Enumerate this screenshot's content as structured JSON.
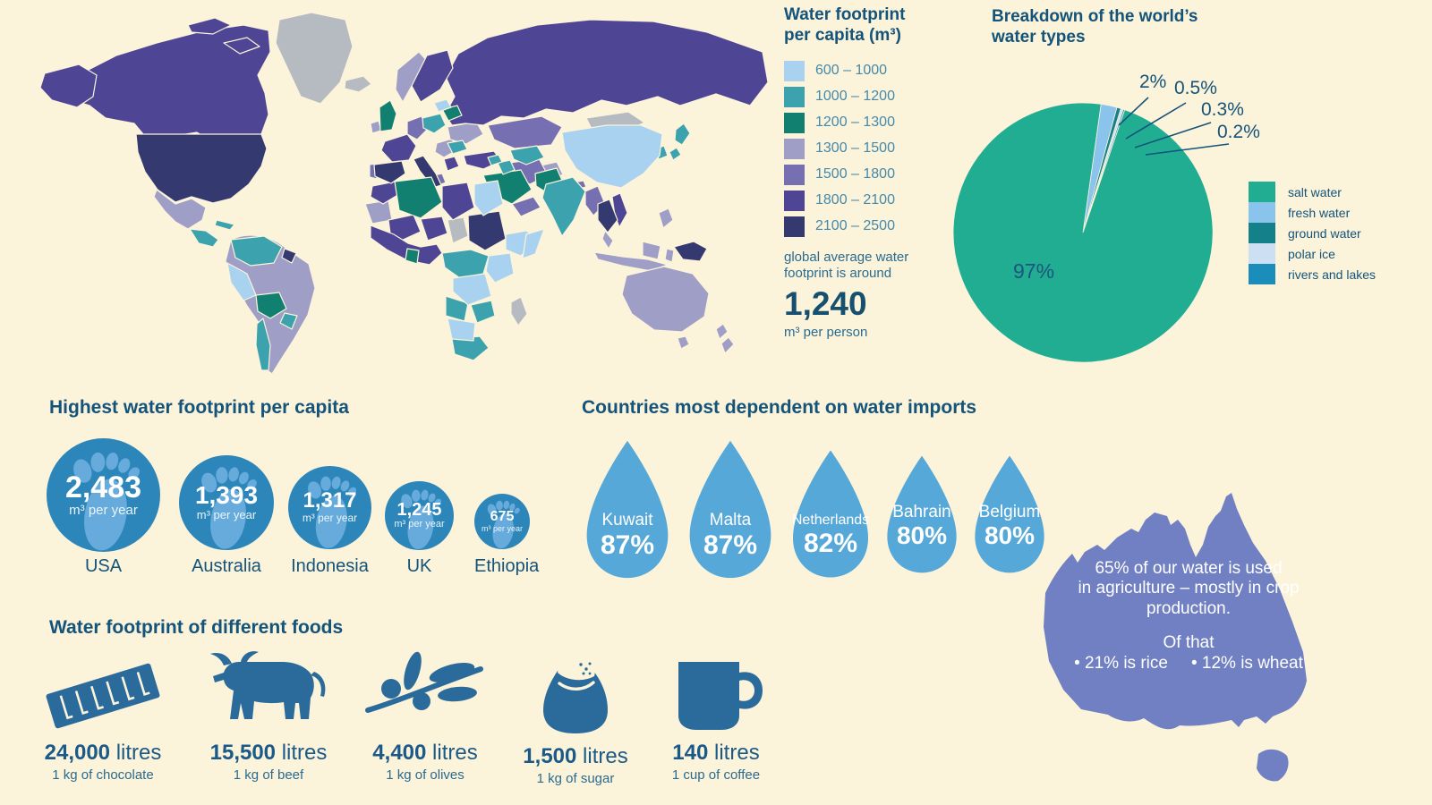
{
  "map": {
    "legend_title": "Water footprint per capita (m³)",
    "bands": [
      {
        "label": "600 – 1000",
        "color": "#a8d2ef"
      },
      {
        "label": "1000 – 1200",
        "color": "#3ba2ae"
      },
      {
        "label": "1200 – 1300",
        "color": "#128070"
      },
      {
        "label": "1300 – 1500",
        "color": "#9e9ec6"
      },
      {
        "label": "1500 – 1800",
        "color": "#7670b2"
      },
      {
        "label": "1800 – 2100",
        "color": "#4e4694"
      },
      {
        "label": "2100 – 2500",
        "color": "#343a70"
      }
    ],
    "no_data_color": "#b6bac1",
    "average_note": "global average water footprint is around",
    "average_value": "1,240",
    "average_unit": "m³ per person"
  },
  "chart_data": {
    "type": "pie",
    "title": "Breakdown of the world’s water types",
    "start_angle_deg": 8,
    "slices": [
      {
        "label": "fresh water",
        "value": 2,
        "pct_label": "2%",
        "color": "#8ac4ec"
      },
      {
        "label": "ground water",
        "value": 0.5,
        "pct_label": "0.5%",
        "color": "#13808a"
      },
      {
        "label": "polar ice",
        "value": 0.3,
        "pct_label": "0.3%",
        "color": "#cddff2"
      },
      {
        "label": "rivers and lakes",
        "value": 0.2,
        "pct_label": "0.2%",
        "color": "#1a8dbb"
      },
      {
        "label": "salt water",
        "value": 97,
        "pct_label": "97%",
        "color": "#20ad92"
      }
    ],
    "legend": [
      {
        "label": "salt water",
        "color": "#20ad92"
      },
      {
        "label": "fresh water",
        "color": "#8ac4ec"
      },
      {
        "label": "ground water",
        "color": "#13808a"
      },
      {
        "label": "polar ice",
        "color": "#cddff2"
      },
      {
        "label": "rivers and lakes",
        "color": "#1a8dbb"
      }
    ]
  },
  "footprints": {
    "title": "Highest water footprint per capita",
    "circle_color": "#2d86ba",
    "glyph_color": "#66abdc",
    "unit": "m³ per year",
    "items": [
      {
        "country": "USA",
        "value": "2,483"
      },
      {
        "country": "Australia",
        "value": "1,393"
      },
      {
        "country": "Indonesia",
        "value": "1,317"
      },
      {
        "country": "UK",
        "value": "1,245"
      },
      {
        "country": "Ethiopia",
        "value": "675"
      }
    ]
  },
  "imports": {
    "title": "Countries most dependent on water imports",
    "drop_color": "#56a8d8",
    "items": [
      {
        "country": "Kuwait",
        "pct": "87%"
      },
      {
        "country": "Malta",
        "pct": "87%"
      },
      {
        "country": "Netherlands",
        "pct": "82%"
      },
      {
        "country": "Bahrain",
        "pct": "80%"
      },
      {
        "country": "Belgium",
        "pct": "80%"
      }
    ]
  },
  "australia": {
    "color": "#7080c2",
    "line1": "65% of our water is used",
    "line2": "in agriculture – mostly in crop",
    "line3": "production.",
    "of_that": "Of that",
    "bullet_rice": "• 21% is rice",
    "bullet_wheat": "• 12% is wheat"
  },
  "foods": {
    "title": "Water footprint of different foods",
    "icon_color": "#2a6b9b",
    "items": [
      {
        "value": "24,000",
        "unit": "litres",
        "desc": "1 kg of chocolate",
        "icon": "chocolate-bar-icon"
      },
      {
        "value": "15,500",
        "unit": "litres",
        "desc": "1 kg of beef",
        "icon": "cow-icon"
      },
      {
        "value": "4,400",
        "unit": "litres",
        "desc": "1 kg of olives",
        "icon": "olive-branch-icon"
      },
      {
        "value": "1,500",
        "unit": "litres",
        "desc": "1 kg of sugar",
        "icon": "sugar-sack-icon"
      },
      {
        "value": "140",
        "unit": "litres",
        "desc": "1 cup of coffee",
        "icon": "coffee-mug-icon"
      }
    ]
  }
}
